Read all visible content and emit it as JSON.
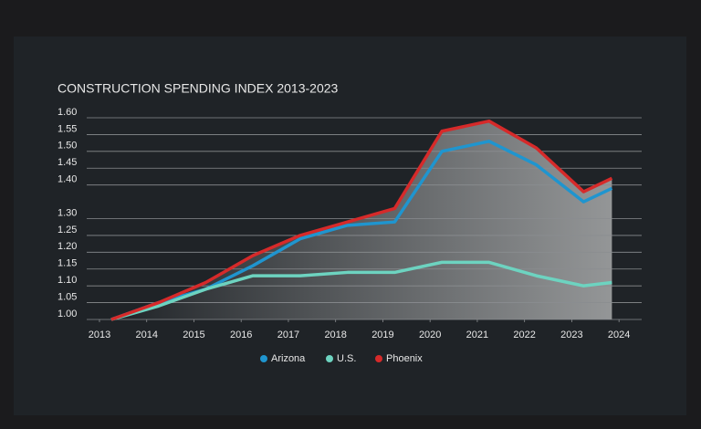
{
  "chart_data": {
    "type": "line",
    "title": "CONSTRUCTION SPENDING INDEX 2013-2023",
    "x": [
      2013.25,
      2014.25,
      2015.25,
      2016.25,
      2017.25,
      2018.25,
      2019.25,
      2020.25,
      2021.25,
      2022.25,
      2023.25,
      2023.85
    ],
    "series": [
      {
        "name": "Arizona",
        "color": "#1f95cf",
        "values": [
          1.0,
          1.05,
          1.09,
          1.16,
          1.24,
          1.28,
          1.29,
          1.5,
          1.53,
          1.46,
          1.35,
          1.39
        ]
      },
      {
        "name": "U.S.",
        "color": "#6dd3c0",
        "values": [
          1.0,
          1.04,
          1.09,
          1.13,
          1.13,
          1.14,
          1.14,
          1.17,
          1.17,
          1.13,
          1.1,
          1.11
        ]
      },
      {
        "name": "Phoenix",
        "color": "#d62a2a",
        "values": [
          1.0,
          1.05,
          1.11,
          1.19,
          1.25,
          1.29,
          1.33,
          1.56,
          1.59,
          1.51,
          1.38,
          1.42
        ]
      }
    ],
    "xlim": [
      2012.73,
      2024.48
    ],
    "xticks": [
      2013,
      2014,
      2015,
      2016,
      2017,
      2018,
      2019,
      2020,
      2021,
      2022,
      2023,
      2024
    ],
    "ylim": [
      1.0,
      1.6
    ],
    "yticks": [
      {
        "value": 1.0,
        "label": "1.00"
      },
      {
        "value": 1.05,
        "label": "1.05"
      },
      {
        "value": 1.1,
        "label": "1.10"
      },
      {
        "value": 1.15,
        "label": "1.15"
      },
      {
        "value": 1.2,
        "label": "1.20"
      },
      {
        "value": 1.25,
        "label": "1.25"
      },
      {
        "value": 1.3,
        "label": "1.30"
      },
      {
        "value": 1.4,
        "label": "1.40"
      },
      {
        "value": 1.45,
        "label": "1.45"
      },
      {
        "value": 1.5,
        "label": "1.50"
      },
      {
        "value": 1.55,
        "label": "1.55"
      },
      {
        "value": 1.6,
        "label": "1.60"
      }
    ],
    "grid": true,
    "legend": "bottom",
    "area_under": "Phoenix"
  }
}
